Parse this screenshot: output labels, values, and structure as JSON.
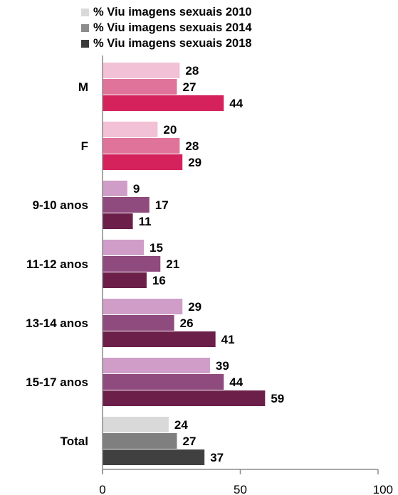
{
  "chart_data": {
    "type": "bar",
    "orientation": "horizontal",
    "categories": [
      "M",
      "F",
      "9-10 anos",
      "11-12 anos",
      "13-14 anos",
      "15-17 anos",
      "Total"
    ],
    "series": [
      {
        "name": "% Viu imagens sexuais 2010",
        "values": [
          28,
          20,
          9,
          15,
          29,
          39,
          24
        ]
      },
      {
        "name": "% Viu imagens sexuais 2014",
        "values": [
          27,
          28,
          17,
          21,
          26,
          44,
          27
        ]
      },
      {
        "name": "% Viu imagens sexuais 2018",
        "values": [
          44,
          29,
          11,
          16,
          41,
          59,
          37
        ]
      }
    ],
    "xlim": [
      0,
      100
    ],
    "xticks": [
      0,
      50,
      100
    ],
    "legend_position": "top",
    "grid": false,
    "data_labels": true,
    "colors": {
      "legend": [
        "#d9d9d9",
        "#8c8c8c",
        "#3a3a3a"
      ],
      "gender": [
        "#f2c1d5",
        "#e07399",
        "#d6225c"
      ],
      "age": [
        "#cf9dc8",
        "#8f4a7e",
        "#6b1f49"
      ],
      "total": [
        "#d9d9d9",
        "#7f7f7f",
        "#404040"
      ]
    },
    "category_color_groups": [
      "gender",
      "gender",
      "age",
      "age",
      "age",
      "age",
      "total"
    ]
  }
}
